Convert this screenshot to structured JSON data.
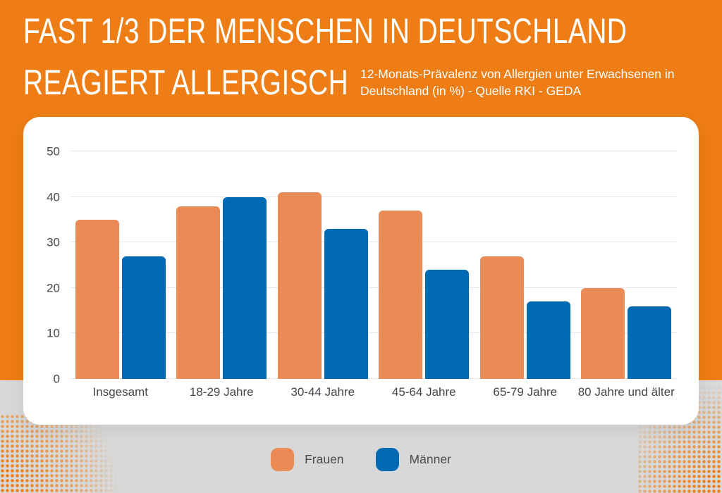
{
  "page": {
    "background_color": "#D8D8D8",
    "header_color": "#ED7D14",
    "card_color": "#FFFFFF",
    "gridline_color": "#E9E9E9",
    "label_color": "#45464C"
  },
  "header": {
    "title_line1": "FAST 1/3 DER MENSCHEN IN DEUTSCHLAND",
    "title_line2": "REAGIERT ALLERGISCH",
    "subtitle_line1": "12-Monats-Prävalenz von Allergien unter Erwachsenen in",
    "subtitle_line2": "Deutschland (in %) - Quelle RKI - GEDA"
  },
  "chart_data": {
    "type": "bar",
    "title": "FAST 1/3 DER MENSCHEN IN DEUTSCHLAND REAGIERT ALLERGISCH",
    "subtitle": "12-Monats-Prävalenz von Allergien unter Erwachsenen in Deutschland (in %) - Quelle RKI - GEDA",
    "categories": [
      "Insgesamt",
      "18-29 Jahre",
      "30-44 Jahre",
      "45-64 Jahre",
      "65-79 Jahre",
      "80 Jahre und älter"
    ],
    "series": [
      {
        "name": "Frauen",
        "color": "#EA8A54",
        "values": [
          35,
          38,
          41,
          37,
          27,
          20
        ]
      },
      {
        "name": "Männer",
        "color": "#0069B3",
        "values": [
          27,
          40,
          33,
          24,
          17,
          16
        ]
      }
    ],
    "ylabel": "",
    "xlabel": "",
    "ylim": [
      0,
      50
    ],
    "yticks": [
      0,
      10,
      20,
      30,
      40,
      50
    ],
    "grid": true,
    "legend_position": "bottom"
  }
}
